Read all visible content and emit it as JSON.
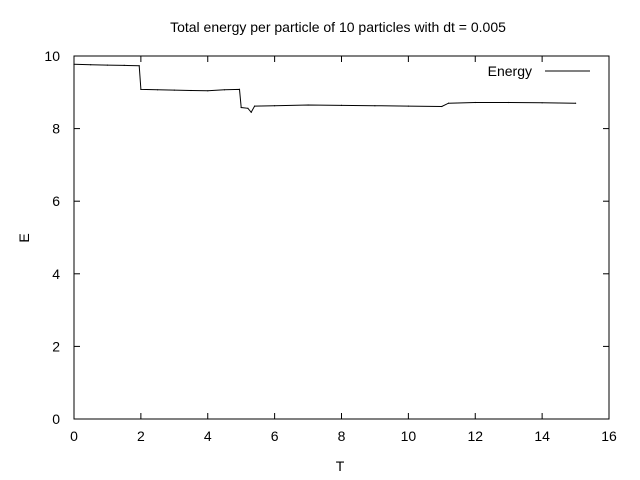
{
  "chart_data": {
    "type": "line",
    "title": "Total energy per particle of 10 particles with dt = 0.005",
    "xlabel": "T",
    "ylabel": "E",
    "xlim": [
      0,
      16
    ],
    "ylim": [
      0,
      10
    ],
    "xticks": [
      0,
      2,
      4,
      6,
      8,
      10,
      12,
      14,
      16
    ],
    "yticks": [
      0,
      2,
      4,
      6,
      8,
      10
    ],
    "grid": false,
    "legend_position": "top-right",
    "series": [
      {
        "name": "Energy",
        "color": "#000000",
        "x": [
          0,
          0.5,
          1.0,
          1.5,
          1.95,
          2.0,
          2.5,
          3.0,
          3.5,
          4.0,
          4.5,
          4.95,
          5.0,
          5.2,
          5.3,
          5.4,
          6.0,
          7.0,
          8.0,
          9.0,
          10.0,
          11.0,
          11.2,
          12.0,
          13.0,
          14.0,
          15.0
        ],
        "y": [
          9.77,
          9.76,
          9.75,
          9.74,
          9.73,
          9.08,
          9.07,
          9.06,
          9.05,
          9.04,
          9.07,
          9.08,
          8.58,
          8.56,
          8.45,
          8.62,
          8.63,
          8.65,
          8.64,
          8.63,
          8.62,
          8.61,
          8.7,
          8.72,
          8.72,
          8.71,
          8.7
        ]
      }
    ]
  }
}
